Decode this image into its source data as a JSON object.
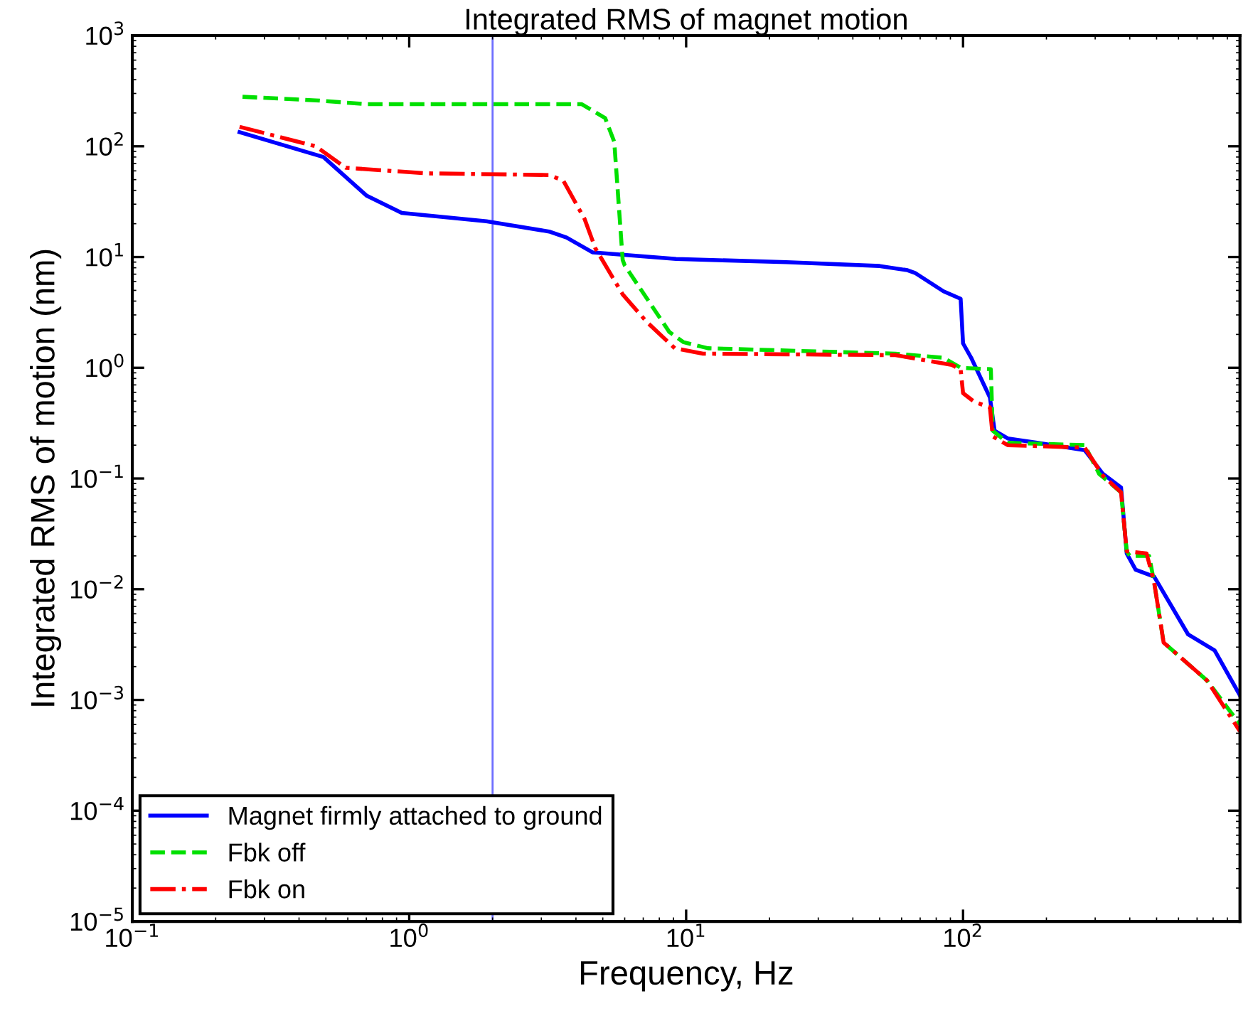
{
  "chart_data": {
    "type": "line",
    "title": "Integrated RMS of magnet motion",
    "xlabel": "Frequency, Hz",
    "ylabel": "Integrated RMS of motion (nm)",
    "log": "xy",
    "grid": false,
    "legend": "bottom left",
    "xlim": [
      0.1,
      1000
    ],
    "ylim": [
      1e-05,
      1000
    ],
    "xticks": [
      {
        "value": 0.1,
        "label": "10$^{−1}$"
      },
      {
        "value": 1,
        "label": "10$^{0}$"
      },
      {
        "value": 10,
        "label": "10$^{1}$"
      },
      {
        "value": 100,
        "label": "10$^{2}$"
      }
    ],
    "yticks": [
      {
        "value": 1e-05,
        "label": "10$^{−5}$"
      },
      {
        "value": 0.0001,
        "label": "10$^{−4}$"
      },
      {
        "value": 0.001,
        "label": "10$^{−3}$"
      },
      {
        "value": 0.01,
        "label": "10$^{−2}$"
      },
      {
        "value": 0.1,
        "label": "10$^{−1}$"
      },
      {
        "value": 1,
        "label": "10$^{0}$"
      },
      {
        "value": 10,
        "label": "10$^{1}$"
      },
      {
        "value": 100,
        "label": "10$^{2}$"
      },
      {
        "value": 1000,
        "label": "10$^{3}$"
      }
    ],
    "ref_lines": [
      {
        "axis": "x",
        "value": 2,
        "color": "#6f6fff"
      }
    ],
    "series": [
      {
        "name": "Magnet firmly attached to ground",
        "color": "#0000ff",
        "line_style": "solid",
        "x": [
          0.244,
          0.49,
          0.7,
          0.94,
          1.9,
          3.2,
          3.7,
          4.6,
          9.2,
          23,
          50,
          63,
          67,
          85,
          98,
          100,
          107,
          125,
          130,
          145,
          185,
          275,
          320,
          372,
          390,
          420,
          490,
          650,
          810,
          1000
        ],
        "values": [
          134,
          80,
          36,
          25,
          21,
          17,
          15,
          11,
          9.6,
          9.0,
          8.3,
          7.6,
          7.2,
          4.9,
          4.2,
          1.66,
          1.23,
          0.54,
          0.27,
          0.23,
          0.21,
          0.18,
          0.11,
          0.083,
          0.021,
          0.015,
          0.013,
          0.0039,
          0.0028,
          0.0011
        ]
      },
      {
        "name": "Fbk off",
        "color": "#00e000",
        "line_style": "dashed",
        "x": [
          0.25,
          0.46,
          0.7,
          4.2,
          5.1,
          5.5,
          5.9,
          6.0,
          8.7,
          9.8,
          12,
          57,
          85,
          98,
          126,
          128,
          145,
          275,
          310,
          372,
          390,
          400,
          470,
          490,
          530,
          760,
          1000
        ],
        "values": [
          280,
          260,
          240,
          240,
          180,
          110,
          9.4,
          8.4,
          2.1,
          1.7,
          1.5,
          1.34,
          1.23,
          1.0,
          0.97,
          0.27,
          0.21,
          0.2,
          0.11,
          0.075,
          0.022,
          0.02,
          0.02,
          0.0115,
          0.0033,
          0.0015,
          0.0006
        ]
      },
      {
        "name": "Fbk on",
        "color": "#ff0000",
        "line_style": "dashdot",
        "x": [
          0.244,
          0.46,
          0.59,
          1.14,
          3.2,
          3.6,
          4.3,
          4.7,
          5.9,
          7.2,
          9.1,
          11.5,
          57,
          91,
          98,
          100,
          110,
          125,
          128,
          145,
          275,
          320,
          372,
          390,
          460,
          490,
          530,
          760,
          1000
        ],
        "values": [
          150,
          100,
          64,
          57,
          55,
          49,
          22,
          12,
          4.6,
          2.6,
          1.5,
          1.34,
          1.3,
          1.06,
          0.97,
          0.59,
          0.49,
          0.44,
          0.24,
          0.2,
          0.19,
          0.106,
          0.075,
          0.022,
          0.021,
          0.0115,
          0.0033,
          0.0015,
          0.00052
        ]
      }
    ]
  }
}
